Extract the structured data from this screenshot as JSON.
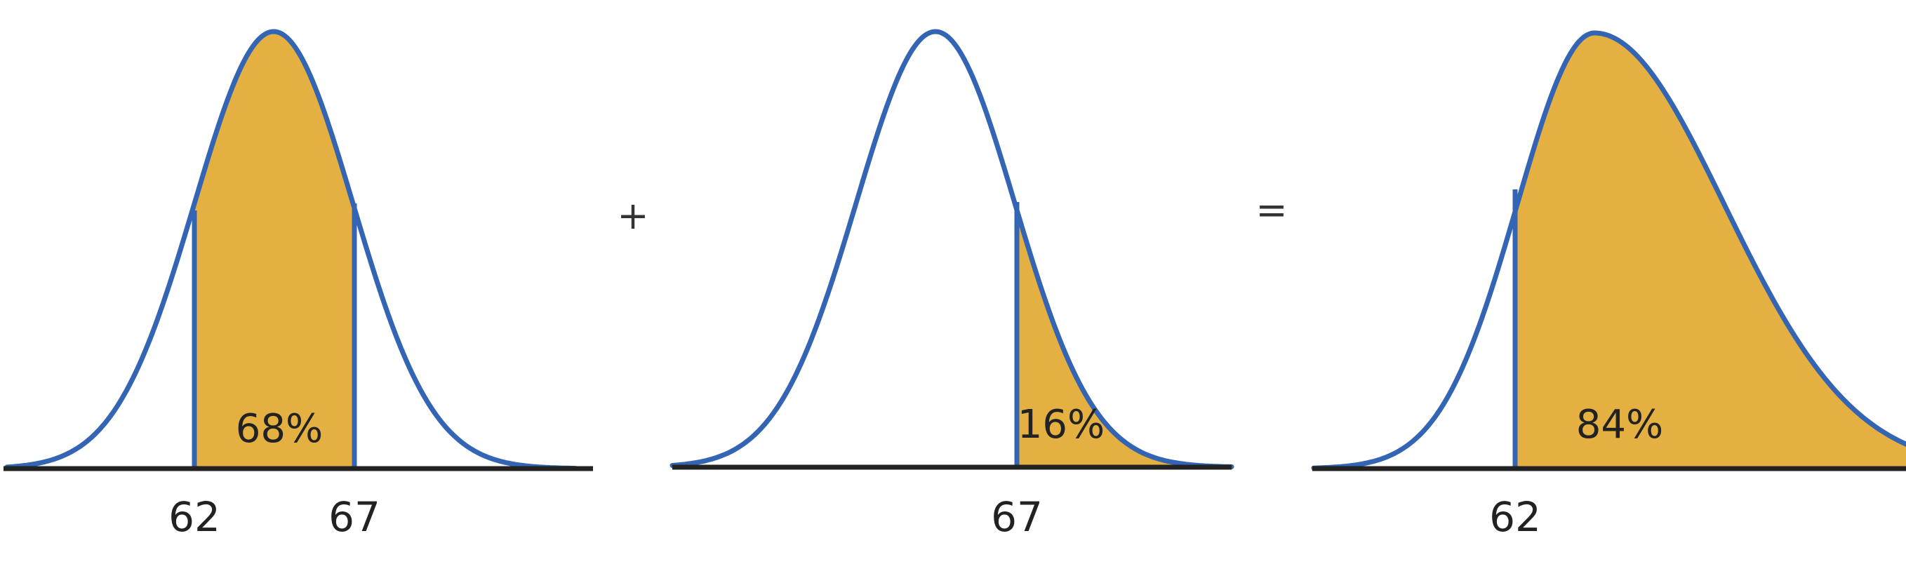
{
  "panels": [
    {
      "percent": "68%",
      "ticks": [
        "62",
        "67"
      ]
    },
    {
      "percent": "16%",
      "ticks": [
        "67"
      ]
    },
    {
      "percent": "84%",
      "ticks": [
        "62"
      ]
    }
  ],
  "operators": {
    "plus": "+",
    "equals": "="
  },
  "colors": {
    "curve": "#3464b4",
    "fill": "#e4b042",
    "axis": "#222222"
  }
}
